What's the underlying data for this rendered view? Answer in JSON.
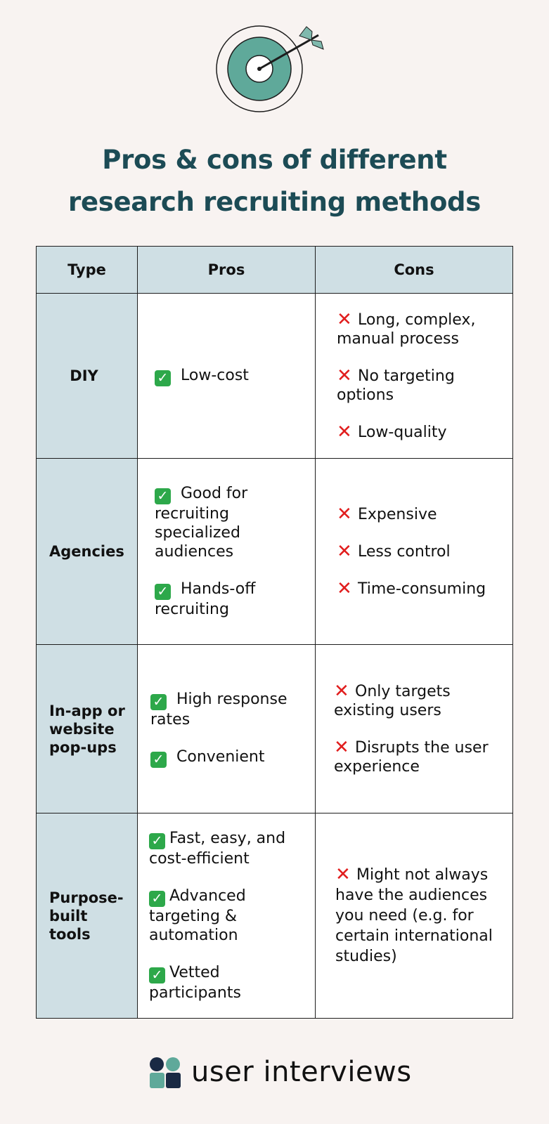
{
  "title": {
    "line1": "Pros & cons of different",
    "line2": "research recruiting methods"
  },
  "colors": {
    "title": "#1c4b55",
    "header_bg": "#cfdfe4",
    "teal": "#5fa99a",
    "check": "#2da84a",
    "cross": "#e11d1d",
    "background": "#f8f3f1"
  },
  "icons": {
    "hero": "target-with-arrow-icon",
    "pro": "check-mark-icon",
    "con": "cross-mark-icon",
    "brand": "user-interviews-logo-icon"
  },
  "table": {
    "headers": [
      "Type",
      "Pros",
      "Cons"
    ],
    "rows": [
      {
        "type": "DIY",
        "pros": [
          "Low-cost"
        ],
        "cons": [
          "Long, complex, manual process",
          "No targeting options",
          "Low-quality"
        ]
      },
      {
        "type": "Agencies",
        "pros": [
          "Good for recruiting specialized audiences",
          "Hands-off recruiting"
        ],
        "cons": [
          "Expensive",
          "Less control",
          "Time-consuming"
        ]
      },
      {
        "type": "In-app or website pop-ups",
        "pros": [
          "High response rates",
          "Convenient"
        ],
        "cons": [
          "Only targets existing users",
          "Disrupts the user experience"
        ]
      },
      {
        "type": "Purpose-built tools",
        "pros": [
          "Fast, easy, and cost-efficient",
          "Advanced targeting & automation",
          "Vetted participants"
        ],
        "cons": [
          "Might not always have the audiences you need (e.g. for certain international studies)"
        ]
      }
    ]
  },
  "brand": {
    "name": "user interviews"
  }
}
